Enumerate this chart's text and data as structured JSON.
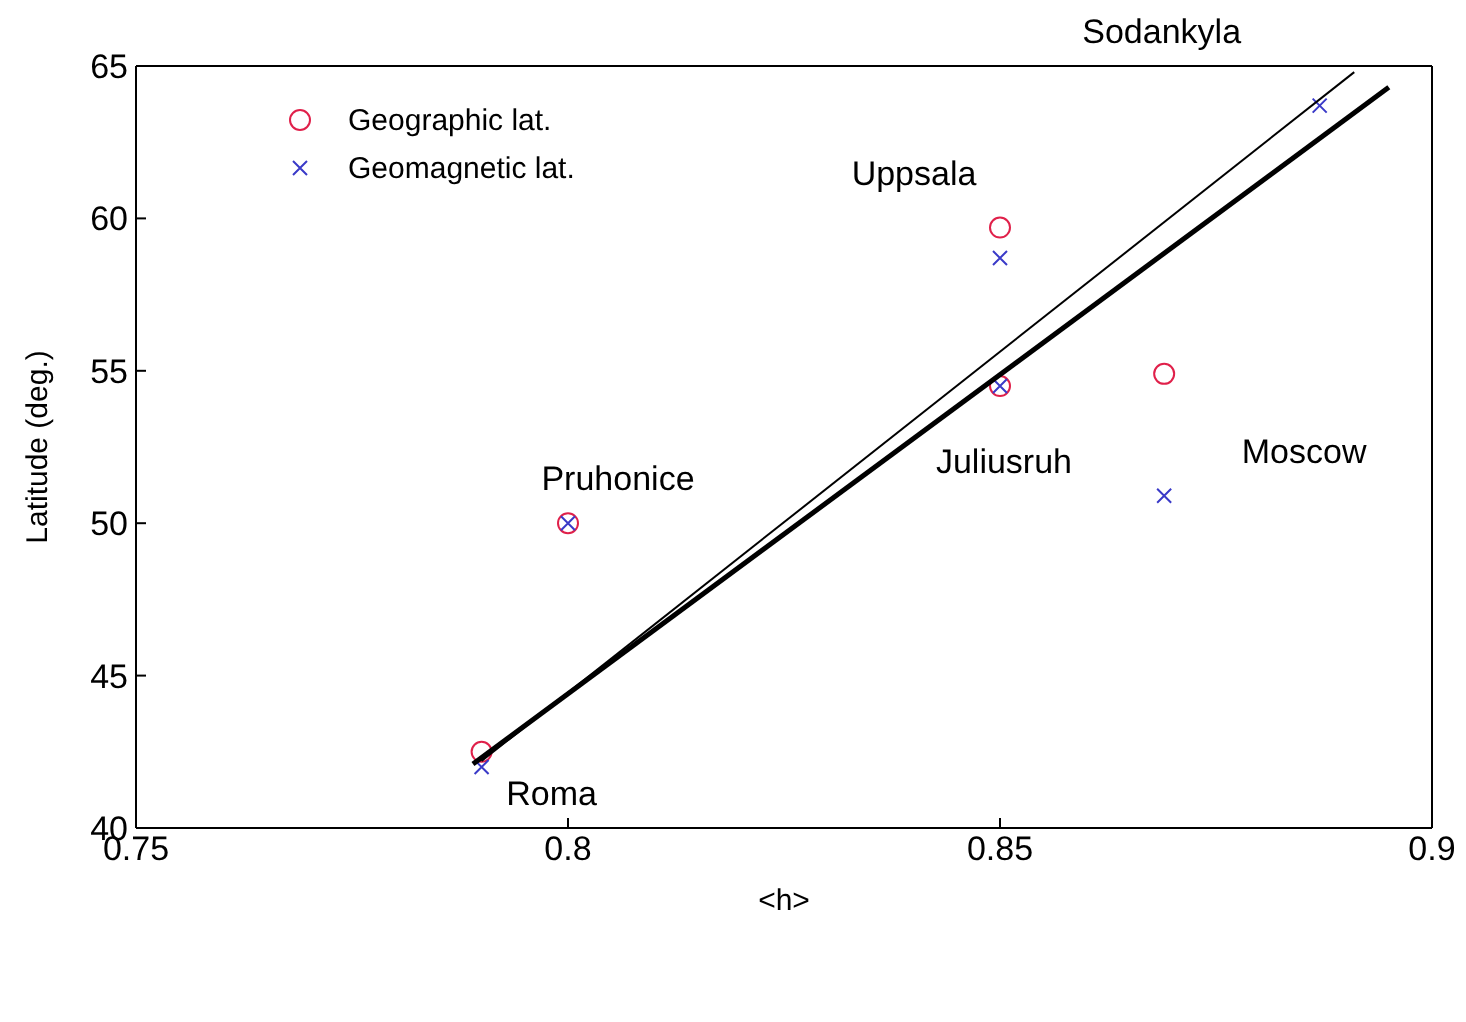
{
  "chart_data": {
    "type": "scatter",
    "xlabel": "<h>",
    "ylabel": "Latitude (deg.)",
    "xlim": [
      0.75,
      0.9
    ],
    "xticks": [
      0.75,
      0.8,
      0.85,
      0.9
    ],
    "ylim": [
      40,
      65
    ],
    "yticks": [
      40,
      45,
      50,
      55,
      60,
      65
    ],
    "legend": "top left",
    "series": [
      {
        "name": "Geographic lat.",
        "color": "#e0204a",
        "marker": "circle",
        "x": [
          0.79,
          0.8,
          0.85,
          0.85,
          0.869
        ],
        "values": [
          42.5,
          50.0,
          59.7,
          54.5,
          54.9
        ]
      },
      {
        "name": "Geomagnetic lat.",
        "color": "#3a3ac8",
        "marker": "cross",
        "x": [
          0.79,
          0.8,
          0.85,
          0.85,
          0.869,
          0.887
        ],
        "values": [
          42.0,
          50.0,
          58.7,
          54.5,
          50.9,
          63.7
        ]
      },
      {
        "type": "line",
        "color": "#000000",
        "x": [
          0.789,
          0.895
        ],
        "values": [
          42.1,
          64.3
        ]
      },
      {
        "type": "line",
        "color": "#000000",
        "x": [
          0.79,
          0.891
        ],
        "values": [
          42.2,
          64.8
        ]
      }
    ],
    "annotations": [
      {
        "text": "Sodankyla",
        "x": 0.887,
        "y": 63.7
      },
      {
        "text": "Uppsala",
        "x": 0.85,
        "y": 59.7
      },
      {
        "text": "Juliusruh",
        "x": 0.85,
        "y": 54.5
      },
      {
        "text": "Moscow",
        "x": 0.869,
        "y": 54.9
      },
      {
        "text": "Pruhonice",
        "x": 0.8,
        "y": 50.0
      },
      {
        "text": "Roma",
        "x": 0.79,
        "y": 42.5
      }
    ]
  }
}
